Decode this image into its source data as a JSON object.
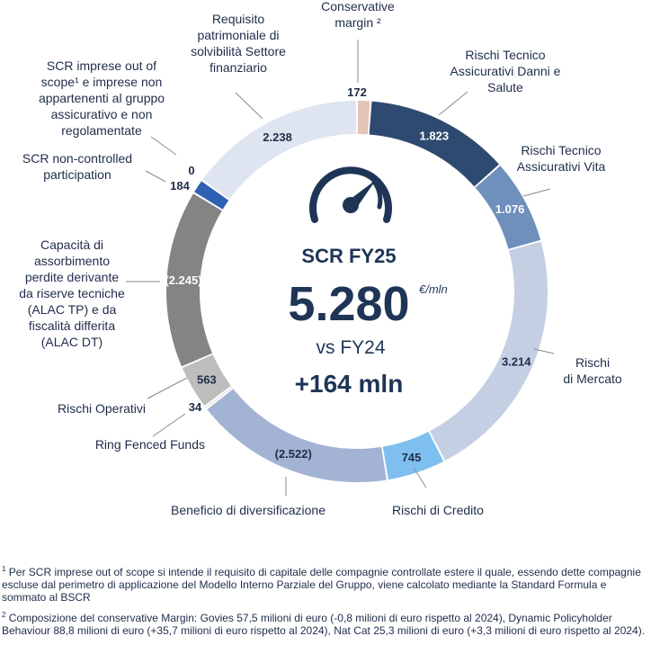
{
  "chart_data": {
    "type": "donut",
    "center": {
      "title": "SCR FY25",
      "value": "5.280",
      "unit": "€/mln",
      "comparison": "vs FY24",
      "delta": "+164 mln"
    },
    "segments": [
      {
        "label": "Conservative margin ²",
        "display": "172",
        "value": 172,
        "color": "#e2c4b8"
      },
      {
        "label": "Rischi Tecnico Assicurativi Danni e Salute",
        "display": "1.823",
        "value": 1823,
        "color": "#2f4a70"
      },
      {
        "label": "Rischi Tecnico Assicurativi Vita",
        "display": "1.076",
        "value": 1076,
        "color": "#6f8fbd"
      },
      {
        "label": "Rischi di Mercato",
        "display": "3.214",
        "value": 3214,
        "color": "#c4cfe3"
      },
      {
        "label": "Rischi di Credito",
        "display": "745",
        "value": 745,
        "color": "#7fbff0"
      },
      {
        "label": "Beneficio di diversificazione",
        "display": "(2.522)",
        "value": -2522,
        "color": "#a3b3d3"
      },
      {
        "label": "Ring Fenced Funds",
        "display": "34",
        "value": 34,
        "color": "#d8d8d8"
      },
      {
        "label": "Rischi Operativi",
        "display": "563",
        "value": 563,
        "color": "#bdbdbd"
      },
      {
        "label": "Capacità di assorbimento perdite derivante da riserve tecniche (ALAC TP) e da fiscalità differita (ALAC DT)",
        "display": "(2.245)",
        "value": -2245,
        "color": "#848484"
      },
      {
        "label": "SCR non-controlled participation",
        "display": "184",
        "value": 184,
        "color": "#2e60b3"
      },
      {
        "label": "SCR imprese out of scope¹ e imprese non appartenenti al gruppo assicurativo e non regolamentate",
        "display": "0",
        "value": 0,
        "color": "#2e60b3"
      },
      {
        "label": "Requisito patrimoniale di solvibilità Settore finanziario",
        "display": "2.238",
        "value": 2238,
        "color": "#dfe5f0"
      }
    ]
  },
  "labels": {
    "conservative": [
      "Conservative",
      "margin ²"
    ],
    "danni": [
      "Rischi Tecnico",
      "Assicurativi Danni e",
      "Salute"
    ],
    "vita": [
      "Rischi Tecnico",
      "Assicurativi Vita"
    ],
    "mercato": [
      "Rischi",
      "di Mercato"
    ],
    "credito": [
      "Rischi di Credito"
    ],
    "diversificazione": [
      "Beneficio di diversificazione"
    ],
    "ringfenced": [
      "Ring Fenced Funds"
    ],
    "operativi": [
      "Rischi Operativi"
    ],
    "alac": [
      "Capacità di",
      "assorbimento",
      "perdite derivante",
      "da riserve tecniche",
      "(ALAC TP) e da",
      "fiscalità differita",
      "(ALAC DT)"
    ],
    "noncontrolled": [
      "SCR non-controlled",
      "participation"
    ],
    "outofscope": [
      "SCR imprese out of",
      "scope¹ e imprese non",
      "appartenenti al gruppo",
      "assicurativo e non",
      "regolamentate"
    ],
    "finanziario": [
      "Requisito",
      "patrimoniale di",
      "solvibilità Settore",
      "finanziario"
    ]
  },
  "footnotes": {
    "note1_mark": "1",
    "note1": "Per SCR imprese out of scope si intende il requisito di capitale delle compagnie controllate estere il quale, essendo dette compagnie escluse dal perimetro di applicazione del Modello Interno Parziale del Gruppo, viene calcolato mediante la Standard Formula e sommato al BSCR",
    "note2_mark": "2",
    "note2": "Composizione del conservative Margin: Govies 57,5 milioni di euro (-0,8 milioni di euro  rispetto al 2024), Dynamic Policyholder Behaviour 88,8 milioni di euro (+35,7 milioni di euro  rispetto al 2024), Nat Cat 25,3 milioni di euro (+3,3 milioni di euro  rispetto al 2024)."
  }
}
